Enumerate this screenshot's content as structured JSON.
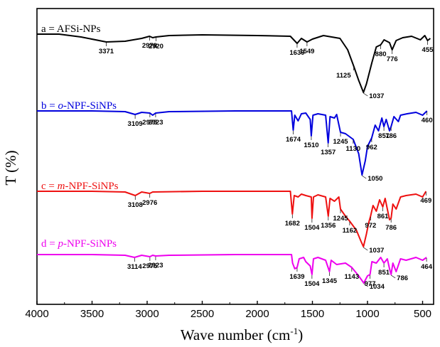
{
  "chart_data": {
    "type": "line",
    "title": "",
    "xlabel": "Wave number (cm",
    "xlabel_sup": "-1",
    "xlabel_close": ")",
    "ylabel": "T (%)",
    "xlim": [
      4000,
      400
    ],
    "x_ticks": [
      "4000",
      "3500",
      "3000",
      "2500",
      "2000",
      "1500",
      "1000",
      "500"
    ],
    "x_tick_values": [
      4000,
      3500,
      3000,
      2500,
      2000,
      1500,
      1000,
      500
    ],
    "grid": false,
    "series": [
      {
        "name": "a = AFSi-NPs",
        "name_prefix": "a = ",
        "name_italic": "",
        "name_rest": "AFSi-NPs",
        "color": "#000000",
        "baseline": 48,
        "points": [
          [
            4000,
            0
          ],
          [
            3800,
            0
          ],
          [
            3600,
            4
          ],
          [
            3371,
            11
          ],
          [
            3200,
            10
          ],
          [
            3050,
            6
          ],
          [
            2978,
            3
          ],
          [
            2950,
            5
          ],
          [
            2920,
            4
          ],
          [
            2800,
            2
          ],
          [
            2500,
            1
          ],
          [
            2000,
            2
          ],
          [
            1700,
            3
          ],
          [
            1639,
            13
          ],
          [
            1600,
            6
          ],
          [
            1549,
            11
          ],
          [
            1500,
            7
          ],
          [
            1400,
            2
          ],
          [
            1250,
            6
          ],
          [
            1180,
            22
          ],
          [
            1125,
            45
          ],
          [
            1080,
            65
          ],
          [
            1037,
            82
          ],
          [
            1010,
            70
          ],
          [
            960,
            40
          ],
          [
            920,
            18
          ],
          [
            880,
            15
          ],
          [
            850,
            8
          ],
          [
            800,
            12
          ],
          [
            776,
            22
          ],
          [
            740,
            9
          ],
          [
            680,
            5
          ],
          [
            600,
            3
          ],
          [
            520,
            8
          ],
          [
            480,
            2
          ],
          [
            455,
            9
          ],
          [
            430,
            6
          ]
        ],
        "peaks": [
          {
            "label": "3371",
            "x": 3371,
            "pos": "below"
          },
          {
            "label": "2978",
            "x": 2978,
            "pos": "below"
          },
          {
            "label": "2920",
            "x": 2920,
            "pos": "below"
          },
          {
            "label": "1639",
            "x": 1639,
            "pos": "below"
          },
          {
            "label": "1549",
            "x": 1549,
            "pos": "below"
          },
          {
            "label": "1125",
            "x": 1125,
            "pos": "left"
          },
          {
            "label": "1037",
            "x": 1037,
            "pos": "right"
          },
          {
            "label": "880",
            "x": 880,
            "pos": "below"
          },
          {
            "label": "776",
            "x": 776,
            "pos": "below"
          },
          {
            "label": "455",
            "x": 455,
            "pos": "below"
          }
        ]
      },
      {
        "name": "b = o-NPF-SiNPs",
        "name_prefix": "b = ",
        "name_italic": "o",
        "name_rest": "-NPF-SiNPs",
        "color": "#0000dd",
        "baseline": 156,
        "points": [
          [
            4000,
            0
          ],
          [
            3500,
            0
          ],
          [
            3200,
            1
          ],
          [
            3109,
            5
          ],
          [
            3050,
            2
          ],
          [
            2975,
            3
          ],
          [
            2950,
            6
          ],
          [
            2923,
            3
          ],
          [
            2800,
            1
          ],
          [
            2200,
            0
          ],
          [
            1750,
            0
          ],
          [
            1690,
            0
          ],
          [
            1674,
            27
          ],
          [
            1660,
            6
          ],
          [
            1630,
            14
          ],
          [
            1600,
            4
          ],
          [
            1560,
            3
          ],
          [
            1520,
            12
          ],
          [
            1510,
            35
          ],
          [
            1495,
            6
          ],
          [
            1450,
            4
          ],
          [
            1380,
            6
          ],
          [
            1357,
            45
          ],
          [
            1340,
            8
          ],
          [
            1300,
            10
          ],
          [
            1280,
            5
          ],
          [
            1245,
            30
          ],
          [
            1200,
            32
          ],
          [
            1130,
            40
          ],
          [
            1080,
            60
          ],
          [
            1050,
            90
          ],
          [
            1020,
            70
          ],
          [
            1000,
            50
          ],
          [
            962,
            38
          ],
          [
            930,
            20
          ],
          [
            900,
            28
          ],
          [
            870,
            10
          ],
          [
            851,
            22
          ],
          [
            830,
            12
          ],
          [
            800,
            28
          ],
          [
            786,
            22
          ],
          [
            760,
            8
          ],
          [
            720,
            15
          ],
          [
            700,
            6
          ],
          [
            640,
            4
          ],
          [
            560,
            2
          ],
          [
            500,
            6
          ],
          [
            460,
            0
          ]
        ],
        "peaks": [
          {
            "label": "3109",
            "x": 3109,
            "pos": "below"
          },
          {
            "label": "2975",
            "x": 2975,
            "pos": "below"
          },
          {
            "label": "2923",
            "x": 2923,
            "pos": "below"
          },
          {
            "label": "1674",
            "x": 1674,
            "pos": "below"
          },
          {
            "label": "1510",
            "x": 1510,
            "pos": "below"
          },
          {
            "label": "1357",
            "x": 1357,
            "pos": "below"
          },
          {
            "label": "1245",
            "x": 1245,
            "pos": "below"
          },
          {
            "label": "1130",
            "x": 1130,
            "pos": "below"
          },
          {
            "label": "1050",
            "x": 1050,
            "pos": "right"
          },
          {
            "label": "962",
            "x": 962,
            "pos": "below"
          },
          {
            "label": "851",
            "x": 851,
            "pos": "below"
          },
          {
            "label": "786",
            "x": 786,
            "pos": "below"
          },
          {
            "label": "460",
            "x": 460,
            "pos": "below"
          }
        ]
      },
      {
        "name": "c = m-NPF-SiNPs",
        "name_prefix": "c = ",
        "name_italic": "m",
        "name_rest": "-NPF-SiNPs",
        "color": "#ee1111",
        "baseline": 269,
        "points": [
          [
            4000,
            0
          ],
          [
            3500,
            0
          ],
          [
            3200,
            1
          ],
          [
            3108,
            6
          ],
          [
            3050,
            1
          ],
          [
            2976,
            3
          ],
          [
            2950,
            1
          ],
          [
            2500,
            0
          ],
          [
            1750,
            0
          ],
          [
            1700,
            0
          ],
          [
            1682,
            32
          ],
          [
            1665,
            6
          ],
          [
            1630,
            8
          ],
          [
            1600,
            4
          ],
          [
            1560,
            6
          ],
          [
            1510,
            8
          ],
          [
            1504,
            38
          ],
          [
            1490,
            8
          ],
          [
            1450,
            5
          ],
          [
            1380,
            8
          ],
          [
            1356,
            35
          ],
          [
            1340,
            10
          ],
          [
            1300,
            14
          ],
          [
            1260,
            8
          ],
          [
            1245,
            25
          ],
          [
            1200,
            35
          ],
          [
            1162,
            42
          ],
          [
            1100,
            55
          ],
          [
            1060,
            70
          ],
          [
            1037,
            78
          ],
          [
            1010,
            60
          ],
          [
            990,
            45
          ],
          [
            972,
            35
          ],
          [
            950,
            20
          ],
          [
            920,
            28
          ],
          [
            890,
            12
          ],
          [
            861,
            22
          ],
          [
            840,
            10
          ],
          [
            800,
            40
          ],
          [
            786,
            38
          ],
          [
            770,
            18
          ],
          [
            740,
            25
          ],
          [
            700,
            8
          ],
          [
            650,
            6
          ],
          [
            560,
            4
          ],
          [
            500,
            8
          ],
          [
            469,
            0
          ]
        ],
        "peaks": [
          {
            "label": "3108",
            "x": 3108,
            "pos": "below"
          },
          {
            "label": "2976",
            "x": 2976,
            "pos": "below"
          },
          {
            "label": "1682",
            "x": 1682,
            "pos": "below"
          },
          {
            "label": "1504",
            "x": 1504,
            "pos": "below"
          },
          {
            "label": "1356",
            "x": 1356,
            "pos": "below"
          },
          {
            "label": "1245",
            "x": 1245,
            "pos": "below"
          },
          {
            "label": "1162",
            "x": 1162,
            "pos": "below"
          },
          {
            "label": "1037",
            "x": 1037,
            "pos": "right"
          },
          {
            "label": "972",
            "x": 972,
            "pos": "below"
          },
          {
            "label": "861",
            "x": 861,
            "pos": "below"
          },
          {
            "label": "786",
            "x": 786,
            "pos": "below"
          },
          {
            "label": "469",
            "x": 469,
            "pos": "below"
          }
        ]
      },
      {
        "name": "d = p-NPF-SiNPs",
        "name_prefix": "d = ",
        "name_italic": "p",
        "name_rest": "-NPF-SiNPs",
        "color": "#ee00ee",
        "baseline": 358,
        "points": [
          [
            4000,
            0
          ],
          [
            3500,
            0
          ],
          [
            3200,
            1
          ],
          [
            3114,
            4
          ],
          [
            3050,
            1
          ],
          [
            2975,
            3
          ],
          [
            2950,
            1
          ],
          [
            2923,
            2
          ],
          [
            2800,
            1
          ],
          [
            2200,
            0
          ],
          [
            1720,
            0
          ],
          [
            1690,
            0
          ],
          [
            1680,
            12
          ],
          [
            1660,
            20
          ],
          [
            1639,
            18
          ],
          [
            1620,
            6
          ],
          [
            1580,
            4
          ],
          [
            1560,
            10
          ],
          [
            1520,
            16
          ],
          [
            1504,
            28
          ],
          [
            1490,
            6
          ],
          [
            1450,
            4
          ],
          [
            1380,
            8
          ],
          [
            1345,
            24
          ],
          [
            1330,
            8
          ],
          [
            1280,
            14
          ],
          [
            1200,
            12
          ],
          [
            1143,
            18
          ],
          [
            1080,
            30
          ],
          [
            1034,
            40
          ],
          [
            1000,
            30
          ],
          [
            977,
            28
          ],
          [
            960,
            10
          ],
          [
            920,
            12
          ],
          [
            880,
            4
          ],
          [
            851,
            12
          ],
          [
            820,
            6
          ],
          [
            800,
            20
          ],
          [
            786,
            28
          ],
          [
            770,
            12
          ],
          [
            740,
            24
          ],
          [
            700,
            6
          ],
          [
            650,
            8
          ],
          [
            560,
            4
          ],
          [
            500,
            8
          ],
          [
            464,
            4
          ]
        ],
        "peaks": [
          {
            "label": "3114",
            "x": 3114,
            "pos": "below"
          },
          {
            "label": "2975",
            "x": 2975,
            "pos": "below"
          },
          {
            "label": "2923",
            "x": 2923,
            "pos": "below"
          },
          {
            "label": "1639",
            "x": 1639,
            "pos": "below"
          },
          {
            "label": "1504",
            "x": 1504,
            "pos": "below"
          },
          {
            "label": "1345",
            "x": 1345,
            "pos": "below"
          },
          {
            "label": "1143",
            "x": 1143,
            "pos": "below"
          },
          {
            "label": "1034",
            "x": 1034,
            "pos": "right"
          },
          {
            "label": "977",
            "x": 977,
            "pos": "below"
          },
          {
            "label": "851",
            "x": 851,
            "pos": "below"
          },
          {
            "label": "786",
            "x": 786,
            "pos": "right"
          },
          {
            "label": "464",
            "x": 464,
            "pos": "below"
          }
        ]
      }
    ]
  }
}
